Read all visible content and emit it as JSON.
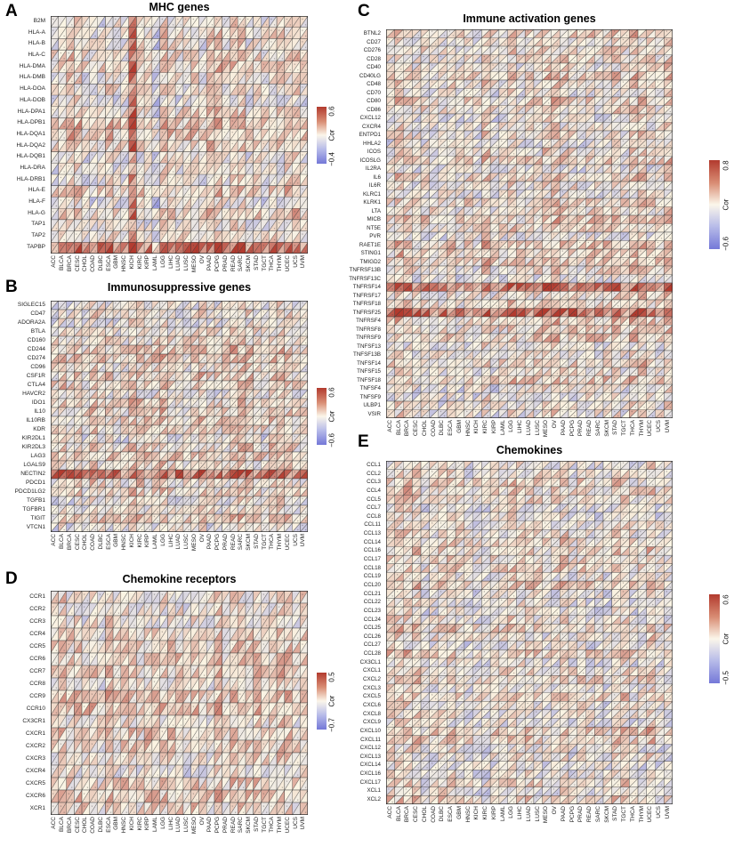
{
  "chart_data": {
    "type": "heatmap",
    "cell_style": "diagonal-split (two triangles per cell, lower-left to upper-right diagonal)",
    "colormap": {
      "negative": "#7478d8",
      "mid": "#fbf5e4",
      "positive": "#b23a2e"
    },
    "grid_line_color": "#3a3a3a",
    "cancer_types": [
      "ACC",
      "BLCA",
      "BRCA",
      "CESC",
      "CHOL",
      "COAD",
      "DLBC",
      "ESCA",
      "GBM",
      "HNSC",
      "KICH",
      "KIRC",
      "KIRP",
      "LAML",
      "LGG",
      "LIHC",
      "LUAD",
      "LUSC",
      "MESO",
      "OV",
      "PAAD",
      "PCPG",
      "PRAD",
      "READ",
      "SARC",
      "SKCM",
      "STAD",
      "TGCT",
      "THCA",
      "THYM",
      "UCEC",
      "UCS",
      "UVM"
    ],
    "panels": [
      {
        "letter": "A",
        "title": "MHC genes",
        "genes": [
          "B2M",
          "HLA-A",
          "HLA-B",
          "HLA-C",
          "HLA-DMA",
          "HLA-DMB",
          "HLA-DOA",
          "HLA-DOB",
          "HLA-DPA1",
          "HLA-DPB1",
          "HLA-DQA1",
          "HLA-DQA2",
          "HLA-DQB1",
          "HLA-DRA",
          "HLA-DRB1",
          "HLA-E",
          "HLA-F",
          "HLA-G",
          "TAP1",
          "TAP2",
          "TAPBP"
        ],
        "colorbar": {
          "label": "Cor",
          "max_label": "0.6",
          "min_label": "−0.4"
        },
        "visual_patterns": {
          "strong_cols": [
            "KICH"
          ],
          "weak_cols": [
            "LAML"
          ],
          "strong_rows": [
            "TAPBP"
          ]
        }
      },
      {
        "letter": "B",
        "title": "Immunosuppressive genes",
        "genes": [
          "SIGLEC15",
          "CD47",
          "ADORA2A",
          "BTLA",
          "CD160",
          "CD244",
          "CD274",
          "CD96",
          "CSF1R",
          "CTLA4",
          "HAVCR2",
          "IDO1",
          "IL10",
          "IL10RB",
          "KDR",
          "KIR2DL1",
          "KIR2DL3",
          "LAG3",
          "LGALS9",
          "NECTIN2",
          "PDCD1",
          "PDCD1LG2",
          "TGFB1",
          "TGFBR1",
          "TIGIT",
          "VTCN1"
        ],
        "colorbar": {
          "label": "Cor",
          "max_label": "0.6",
          "min_label": "−0.6"
        },
        "visual_patterns": {
          "strong_rows": [
            "NECTIN2"
          ]
        }
      },
      {
        "letter": "C",
        "title": "Immune activation genes",
        "genes": [
          "BTNL2",
          "CD27",
          "CD276",
          "CD28",
          "CD40",
          "CD40LG",
          "CD48",
          "CD70",
          "CD80",
          "CD86",
          "CXCL12",
          "CXCR4",
          "ENTPD1",
          "HHLA2",
          "ICOS",
          "ICOSLG",
          "IL2RA",
          "IL6",
          "IL6R",
          "KLRC1",
          "KLRK1",
          "LTA",
          "MICB",
          "NT5E",
          "PVR",
          "RAET1E",
          "STING1",
          "TMIGD2",
          "TNFRSF13B",
          "TNFRSF13C",
          "TNFRSF14",
          "TNFRSF17",
          "TNFRSF18",
          "TNFRSF25",
          "TNFRSF4",
          "TNFRSF8",
          "TNFRSF9",
          "TNFSF13",
          "TNFSF13B",
          "TNFSF14",
          "TNFSF15",
          "TNFSF18",
          "TNFSF4",
          "TNFSF9",
          "ULBP1",
          "VSIR"
        ],
        "colorbar": {
          "label": "Cor",
          "max_label": "0.8",
          "min_label": "−0.6"
        },
        "visual_patterns": {
          "strong_rows": [
            "TNFRSF14",
            "TNFRSF25"
          ]
        }
      },
      {
        "letter": "D",
        "title": "Chemokine receptors",
        "genes": [
          "CCR1",
          "CCR2",
          "CCR3",
          "CCR4",
          "CCR5",
          "CCR6",
          "CCR7",
          "CCR8",
          "CCR9",
          "CCR10",
          "CX3CR1",
          "CXCR1",
          "CXCR2",
          "CXCR3",
          "CXCR4",
          "CXCR5",
          "CXCR6",
          "XCR1"
        ],
        "colorbar": {
          "label": "Cor",
          "max_label": "0.5",
          "min_label": "−0.7"
        },
        "visual_patterns": {}
      },
      {
        "letter": "E",
        "title": "Chemokines",
        "genes": [
          "CCL1",
          "CCL2",
          "CCL3",
          "CCL4",
          "CCL5",
          "CCL7",
          "CCL8",
          "CCL11",
          "CCL13",
          "CCL14",
          "CCL16",
          "CCL17",
          "CCL18",
          "CCL19",
          "CCL20",
          "CCL21",
          "CCL22",
          "CCL23",
          "CCL24",
          "CCL25",
          "CCL26",
          "CCL27",
          "CCL28",
          "CX3CL1",
          "CXCL1",
          "CXCL2",
          "CXCL3",
          "CXCL5",
          "CXCL6",
          "CXCL8",
          "CXCL9",
          "CXCL10",
          "CXCL11",
          "CXCL12",
          "CXCL13",
          "CXCL14",
          "CXCL16",
          "CXCL17",
          "XCL1",
          "XCL2"
        ],
        "colorbar": {
          "label": "Cor",
          "max_label": "0.6",
          "min_label": "−0.5"
        },
        "visual_patterns": {}
      }
    ]
  }
}
